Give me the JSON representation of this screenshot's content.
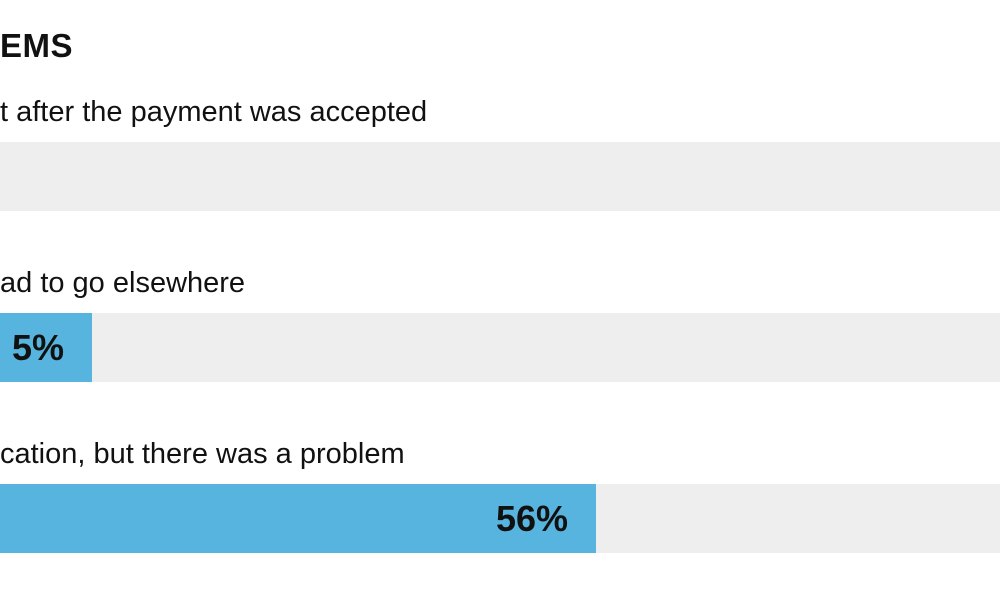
{
  "chart_data": {
    "type": "bar",
    "orientation": "horizontal",
    "title": "EMS",
    "categories": [
      "t after the payment was accepted",
      "ad to go elsewhere",
      "cation, but there was a problem"
    ],
    "values": [
      null,
      null,
      56
    ],
    "value_labels": [
      "",
      "5%",
      "56%"
    ],
    "xlim": [
      0,
      100
    ],
    "grid": false,
    "colors": {
      "bar": "#56b4de",
      "track": "#eeeeee",
      "text": "#111111"
    }
  }
}
